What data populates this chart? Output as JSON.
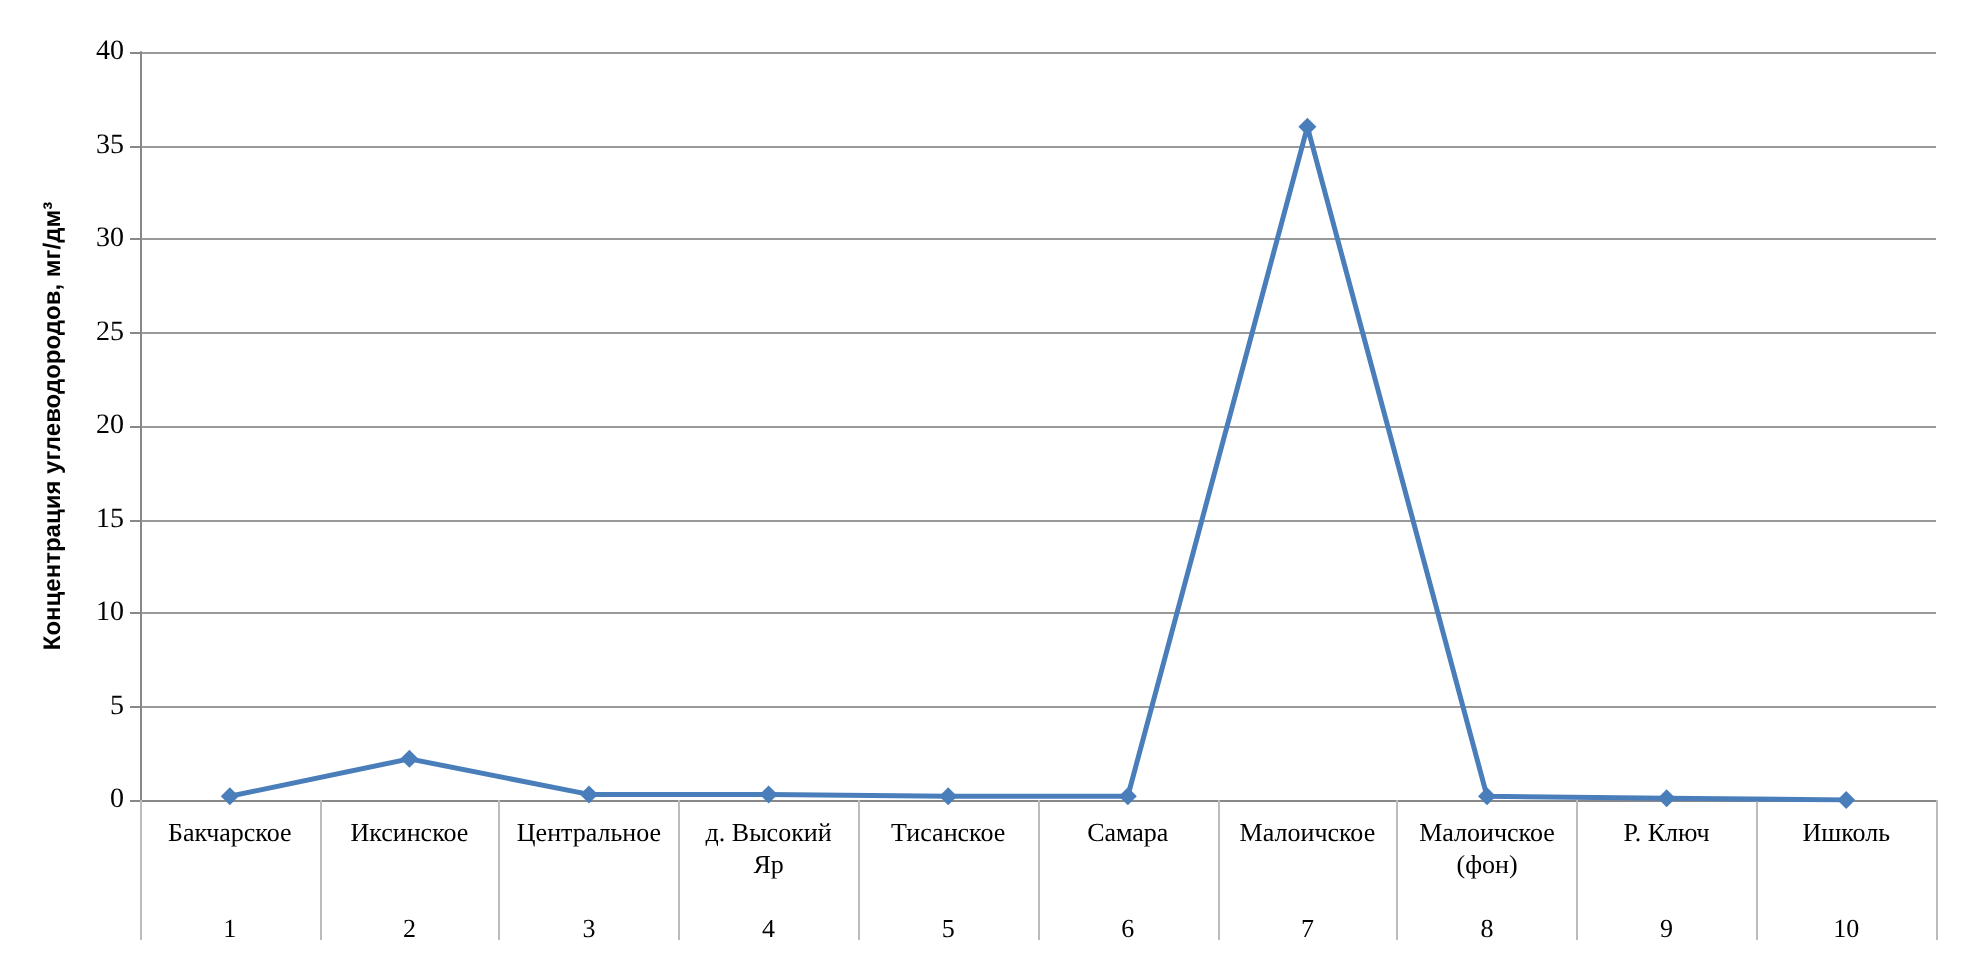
{
  "chart_data": {
    "type": "line",
    "ylabel": "Концентрация углеводородов, мг/дм³",
    "categories": [
      "Бакчарское\n1",
      "Иксинское\n2",
      "Центральное\n3",
      "д. Высокий\nЯр\n4",
      "Тисанское\n5",
      "Самара\n6",
      "Малоичское\n7",
      "Малоичское\n(фон)\n8",
      "Р. Ключ\n9",
      "Ишколь\n10"
    ],
    "series": [
      {
        "color": "#4a7ebb",
        "values": [
          0.2,
          2.2,
          0.3,
          0.3,
          0.2,
          0.2,
          36,
          0.2,
          0.1,
          0
        ]
      }
    ],
    "ylim": [
      0,
      40
    ],
    "yticks": [
      0,
      5,
      10,
      15,
      20,
      25,
      30,
      35,
      40
    ],
    "grid": "y",
    "marker": "diamond",
    "line_style": "solid"
  }
}
